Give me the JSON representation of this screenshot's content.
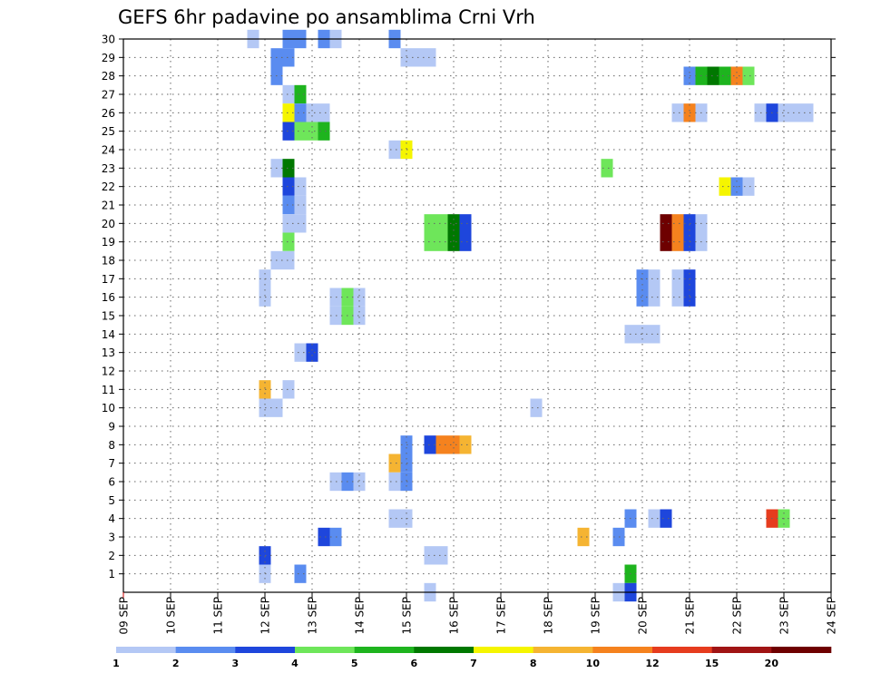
{
  "chart_data": {
    "type": "heatmap",
    "title": "GEFS 6hr padavine po ansamblima Crni Vrh",
    "xlabel": "",
    "ylabel": "",
    "x_ticks": [
      "09 SEP",
      "10 SEP",
      "11 SEP",
      "12 SEP",
      "13 SEP",
      "14 SEP",
      "15 SEP",
      "16 SEP",
      "17 SEP",
      "18 SEP",
      "19 SEP",
      "20 SEP",
      "21 SEP",
      "22 SEP",
      "23 SEP",
      "24 SEP"
    ],
    "xlim_day": [
      9,
      24
    ],
    "time_step_hours": 6,
    "y_ticks": [
      "1",
      "2",
      "3",
      "4",
      "5",
      "6",
      "7",
      "8",
      "9",
      "10",
      "11",
      "12",
      "13",
      "14",
      "15",
      "16",
      "17",
      "18",
      "19",
      "20",
      "21",
      "22",
      "23",
      "24",
      "25",
      "26",
      "27",
      "28",
      "29",
      "30"
    ],
    "ylim": [
      0,
      30
    ],
    "grid": true,
    "grid_style": "dotted",
    "levels": [
      "1",
      "2",
      "3",
      "4",
      "5",
      "6",
      "7",
      "8",
      "10",
      "12",
      "15",
      "20"
    ],
    "level_colors": [
      "#b4c8f5",
      "#5a8cf0",
      "#1e46dc",
      "#6ee65a",
      "#1eb41e",
      "#007800",
      "#f5f500",
      "#f5b432",
      "#f5821e",
      "#e63c1e",
      "#a01414",
      "#6e0000"
    ],
    "cells": [
      {
        "member": 30,
        "day": 11.75,
        "level": 1
      },
      {
        "member": 30,
        "day": 12.5,
        "level": 2
      },
      {
        "member": 30,
        "day": 12.75,
        "level": 2
      },
      {
        "member": 30,
        "day": 13.25,
        "level": 2
      },
      {
        "member": 30,
        "day": 13.5,
        "level": 1
      },
      {
        "member": 30,
        "day": 14.75,
        "level": 2
      },
      {
        "member": 29,
        "day": 12.25,
        "level": 2
      },
      {
        "member": 29,
        "day": 12.5,
        "level": 2
      },
      {
        "member": 29,
        "day": 15.0,
        "level": 1
      },
      {
        "member": 29,
        "day": 15.25,
        "level": 1
      },
      {
        "member": 29,
        "day": 15.5,
        "level": 1
      },
      {
        "member": 28,
        "day": 12.25,
        "level": 2
      },
      {
        "member": 28,
        "day": 21.0,
        "level": 2
      },
      {
        "member": 28,
        "day": 21.25,
        "level": 5
      },
      {
        "member": 28,
        "day": 21.5,
        "level": 6
      },
      {
        "member": 28,
        "day": 21.75,
        "level": 5
      },
      {
        "member": 28,
        "day": 22.0,
        "level": 9
      },
      {
        "member": 28,
        "day": 22.25,
        "level": 4
      },
      {
        "member": 27,
        "day": 12.5,
        "level": 1
      },
      {
        "member": 27,
        "day": 12.75,
        "level": 5
      },
      {
        "member": 26,
        "day": 12.5,
        "level": 7
      },
      {
        "member": 26,
        "day": 12.75,
        "level": 2
      },
      {
        "member": 26,
        "day": 13.0,
        "level": 1
      },
      {
        "member": 26,
        "day": 13.25,
        "level": 1
      },
      {
        "member": 26,
        "day": 20.75,
        "level": 1
      },
      {
        "member": 26,
        "day": 21.0,
        "level": 9
      },
      {
        "member": 26,
        "day": 21.25,
        "level": 1
      },
      {
        "member": 26,
        "day": 22.5,
        "level": 1
      },
      {
        "member": 26,
        "day": 22.75,
        "level": 3
      },
      {
        "member": 26,
        "day": 23.0,
        "level": 1
      },
      {
        "member": 26,
        "day": 23.25,
        "level": 1
      },
      {
        "member": 26,
        "day": 23.5,
        "level": 1
      },
      {
        "member": 25,
        "day": 12.5,
        "level": 3
      },
      {
        "member": 25,
        "day": 12.75,
        "level": 4
      },
      {
        "member": 25,
        "day": 13.0,
        "level": 4
      },
      {
        "member": 25,
        "day": 13.25,
        "level": 5
      },
      {
        "member": 24,
        "day": 14.75,
        "level": 1
      },
      {
        "member": 24,
        "day": 15.0,
        "level": 7
      },
      {
        "member": 23,
        "day": 12.25,
        "level": 1
      },
      {
        "member": 23,
        "day": 12.5,
        "level": 6
      },
      {
        "member": 23,
        "day": 19.25,
        "level": 4
      },
      {
        "member": 22,
        "day": 12.5,
        "level": 3
      },
      {
        "member": 22,
        "day": 12.75,
        "level": 1
      },
      {
        "member": 22,
        "day": 21.75,
        "level": 7
      },
      {
        "member": 22,
        "day": 22.0,
        "level": 2
      },
      {
        "member": 22,
        "day": 22.25,
        "level": 1
      },
      {
        "member": 21,
        "day": 12.5,
        "level": 2
      },
      {
        "member": 21,
        "day": 12.75,
        "level": 1
      },
      {
        "member": 20,
        "day": 12.5,
        "level": 1
      },
      {
        "member": 20,
        "day": 12.75,
        "level": 1
      },
      {
        "member": 20,
        "day": 15.5,
        "level": 4
      },
      {
        "member": 20,
        "day": 15.75,
        "level": 4
      },
      {
        "member": 20,
        "day": 16.0,
        "level": 6
      },
      {
        "member": 20,
        "day": 16.25,
        "level": 3
      },
      {
        "member": 20,
        "day": 20.5,
        "level": 12
      },
      {
        "member": 20,
        "day": 20.75,
        "level": 9
      },
      {
        "member": 20,
        "day": 21.0,
        "level": 3
      },
      {
        "member": 20,
        "day": 21.25,
        "level": 1
      },
      {
        "member": 19,
        "day": 12.5,
        "level": 4
      },
      {
        "member": 19,
        "day": 15.5,
        "level": 4
      },
      {
        "member": 19,
        "day": 15.75,
        "level": 4
      },
      {
        "member": 19,
        "day": 16.0,
        "level": 6
      },
      {
        "member": 19,
        "day": 16.25,
        "level": 3
      },
      {
        "member": 19,
        "day": 20.5,
        "level": 12
      },
      {
        "member": 19,
        "day": 20.75,
        "level": 9
      },
      {
        "member": 19,
        "day": 21.0,
        "level": 3
      },
      {
        "member": 19,
        "day": 21.25,
        "level": 1
      },
      {
        "member": 18,
        "day": 12.25,
        "level": 1
      },
      {
        "member": 18,
        "day": 12.5,
        "level": 1
      },
      {
        "member": 17,
        "day": 12.0,
        "level": 1
      },
      {
        "member": 17,
        "day": 20.0,
        "level": 2
      },
      {
        "member": 17,
        "day": 20.25,
        "level": 1
      },
      {
        "member": 17,
        "day": 20.75,
        "level": 1
      },
      {
        "member": 17,
        "day": 21.0,
        "level": 3
      },
      {
        "member": 16,
        "day": 12.0,
        "level": 1
      },
      {
        "member": 16,
        "day": 13.5,
        "level": 1
      },
      {
        "member": 16,
        "day": 13.75,
        "level": 4
      },
      {
        "member": 16,
        "day": 14.0,
        "level": 1
      },
      {
        "member": 16,
        "day": 20.0,
        "level": 2
      },
      {
        "member": 16,
        "day": 20.25,
        "level": 1
      },
      {
        "member": 16,
        "day": 20.75,
        "level": 1
      },
      {
        "member": 16,
        "day": 21.0,
        "level": 3
      },
      {
        "member": 15,
        "day": 13.5,
        "level": 1
      },
      {
        "member": 15,
        "day": 13.75,
        "level": 4
      },
      {
        "member": 15,
        "day": 14.0,
        "level": 1
      },
      {
        "member": 14,
        "day": 19.75,
        "level": 1
      },
      {
        "member": 14,
        "day": 20.0,
        "level": 1
      },
      {
        "member": 14,
        "day": 20.25,
        "level": 1
      },
      {
        "member": 13,
        "day": 12.75,
        "level": 1
      },
      {
        "member": 13,
        "day": 13.0,
        "level": 3
      },
      {
        "member": 11,
        "day": 12.0,
        "level": 8
      },
      {
        "member": 11,
        "day": 12.5,
        "level": 1
      },
      {
        "member": 10,
        "day": 12.0,
        "level": 1
      },
      {
        "member": 10,
        "day": 12.25,
        "level": 1
      },
      {
        "member": 10,
        "day": 17.75,
        "level": 1
      },
      {
        "member": 8,
        "day": 15.0,
        "level": 2
      },
      {
        "member": 8,
        "day": 15.5,
        "level": 3
      },
      {
        "member": 8,
        "day": 15.75,
        "level": 9
      },
      {
        "member": 8,
        "day": 16.0,
        "level": 9
      },
      {
        "member": 8,
        "day": 16.25,
        "level": 8
      },
      {
        "member": 7,
        "day": 14.75,
        "level": 8
      },
      {
        "member": 7,
        "day": 15.0,
        "level": 2
      },
      {
        "member": 6,
        "day": 13.5,
        "level": 1
      },
      {
        "member": 6,
        "day": 13.75,
        "level": 2
      },
      {
        "member": 6,
        "day": 14.0,
        "level": 1
      },
      {
        "member": 6,
        "day": 14.75,
        "level": 1
      },
      {
        "member": 6,
        "day": 15.0,
        "level": 2
      },
      {
        "member": 4,
        "day": 14.75,
        "level": 1
      },
      {
        "member": 4,
        "day": 15.0,
        "level": 1
      },
      {
        "member": 4,
        "day": 19.75,
        "level": 2
      },
      {
        "member": 4,
        "day": 20.25,
        "level": 1
      },
      {
        "member": 4,
        "day": 20.5,
        "level": 3
      },
      {
        "member": 4,
        "day": 22.75,
        "level": 10
      },
      {
        "member": 4,
        "day": 23.0,
        "level": 4
      },
      {
        "member": 3,
        "day": 13.25,
        "level": 3
      },
      {
        "member": 3,
        "day": 13.5,
        "level": 2
      },
      {
        "member": 3,
        "day": 18.75,
        "level": 8
      },
      {
        "member": 3,
        "day": 19.5,
        "level": 2
      },
      {
        "member": 2,
        "day": 12.0,
        "level": 3
      },
      {
        "member": 2,
        "day": 15.5,
        "level": 1
      },
      {
        "member": 2,
        "day": 15.75,
        "level": 1
      },
      {
        "member": 1,
        "day": 12.0,
        "level": 1
      },
      {
        "member": 1,
        "day": 12.75,
        "level": 2
      },
      {
        "member": 1,
        "day": 19.75,
        "level": 5
      },
      {
        "member": 0,
        "day": 15.5,
        "level": 1
      },
      {
        "member": 0,
        "day": 19.5,
        "level": 1
      },
      {
        "member": 0,
        "day": 19.75,
        "level": 3
      }
    ]
  }
}
